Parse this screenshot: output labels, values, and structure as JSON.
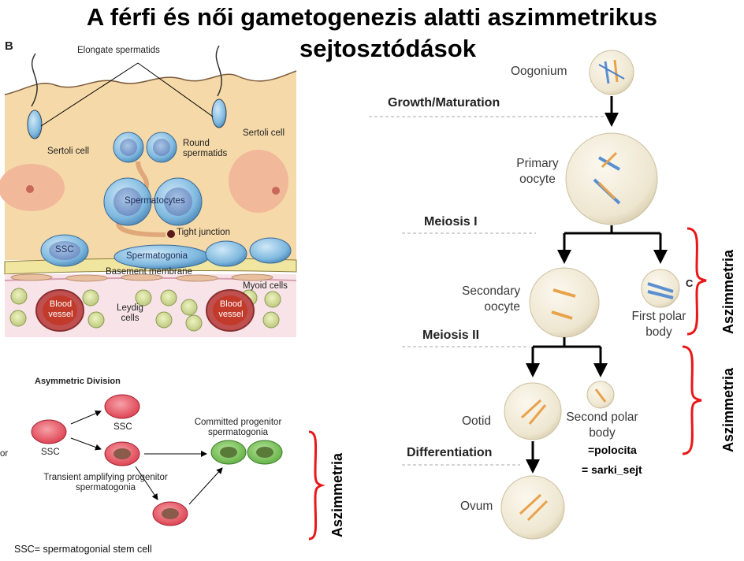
{
  "title": {
    "line1": "A férfi és női gametogenezis alatti aszimmetrikus",
    "line2": "sejtosztódások"
  },
  "spermatogenesis": {
    "panel_letter": "B",
    "labels": {
      "elongate": "Elongate spermatids",
      "sertoli_left": "Sertoli cell",
      "sertoli_right": "Sertoli cell",
      "round": "Round spermatids",
      "spermatocytes": "Spermatocytes",
      "tight": "Tight junction",
      "ssc": "SSC",
      "spermatogonia": "Spermatogonia",
      "basement": "Basement membrane",
      "myoid": "Myoid cells",
      "blood1": "Blood vessel",
      "blood2": "Blood vessel",
      "leydig": "Leydig cells"
    }
  },
  "asym": {
    "title": "Asymmetric Division",
    "ssc_left": "SSC",
    "ssc_top": "SSC",
    "committed": "Committed progenitor spermatogonia",
    "transient": "Transient amplifying progenitor spermatogonia",
    "cut_text": "or",
    "footnote": "SSC= spermatogonial stem cell",
    "aszimmetria": "Aszimmetria"
  },
  "oogenesis": {
    "oogonium": "Oogonium",
    "growth": "Growth/Maturation",
    "primary": "Primary oocyte",
    "meiosis1": "Meiosis I",
    "secondary": "Secondary oocyte",
    "first_polar": "First polar body",
    "c_letter": "C",
    "meiosis2": "Meiosis II",
    "ootid": "Ootid",
    "second_polar": "Second polar body",
    "differentiation": "Differentiation",
    "polocita": "=polocita",
    "sarki": "= sarki_sejt",
    "ovum": "Ovum",
    "aszimmetria1": "Aszimmetria",
    "aszimmetria2": "Aszimmetria"
  }
}
